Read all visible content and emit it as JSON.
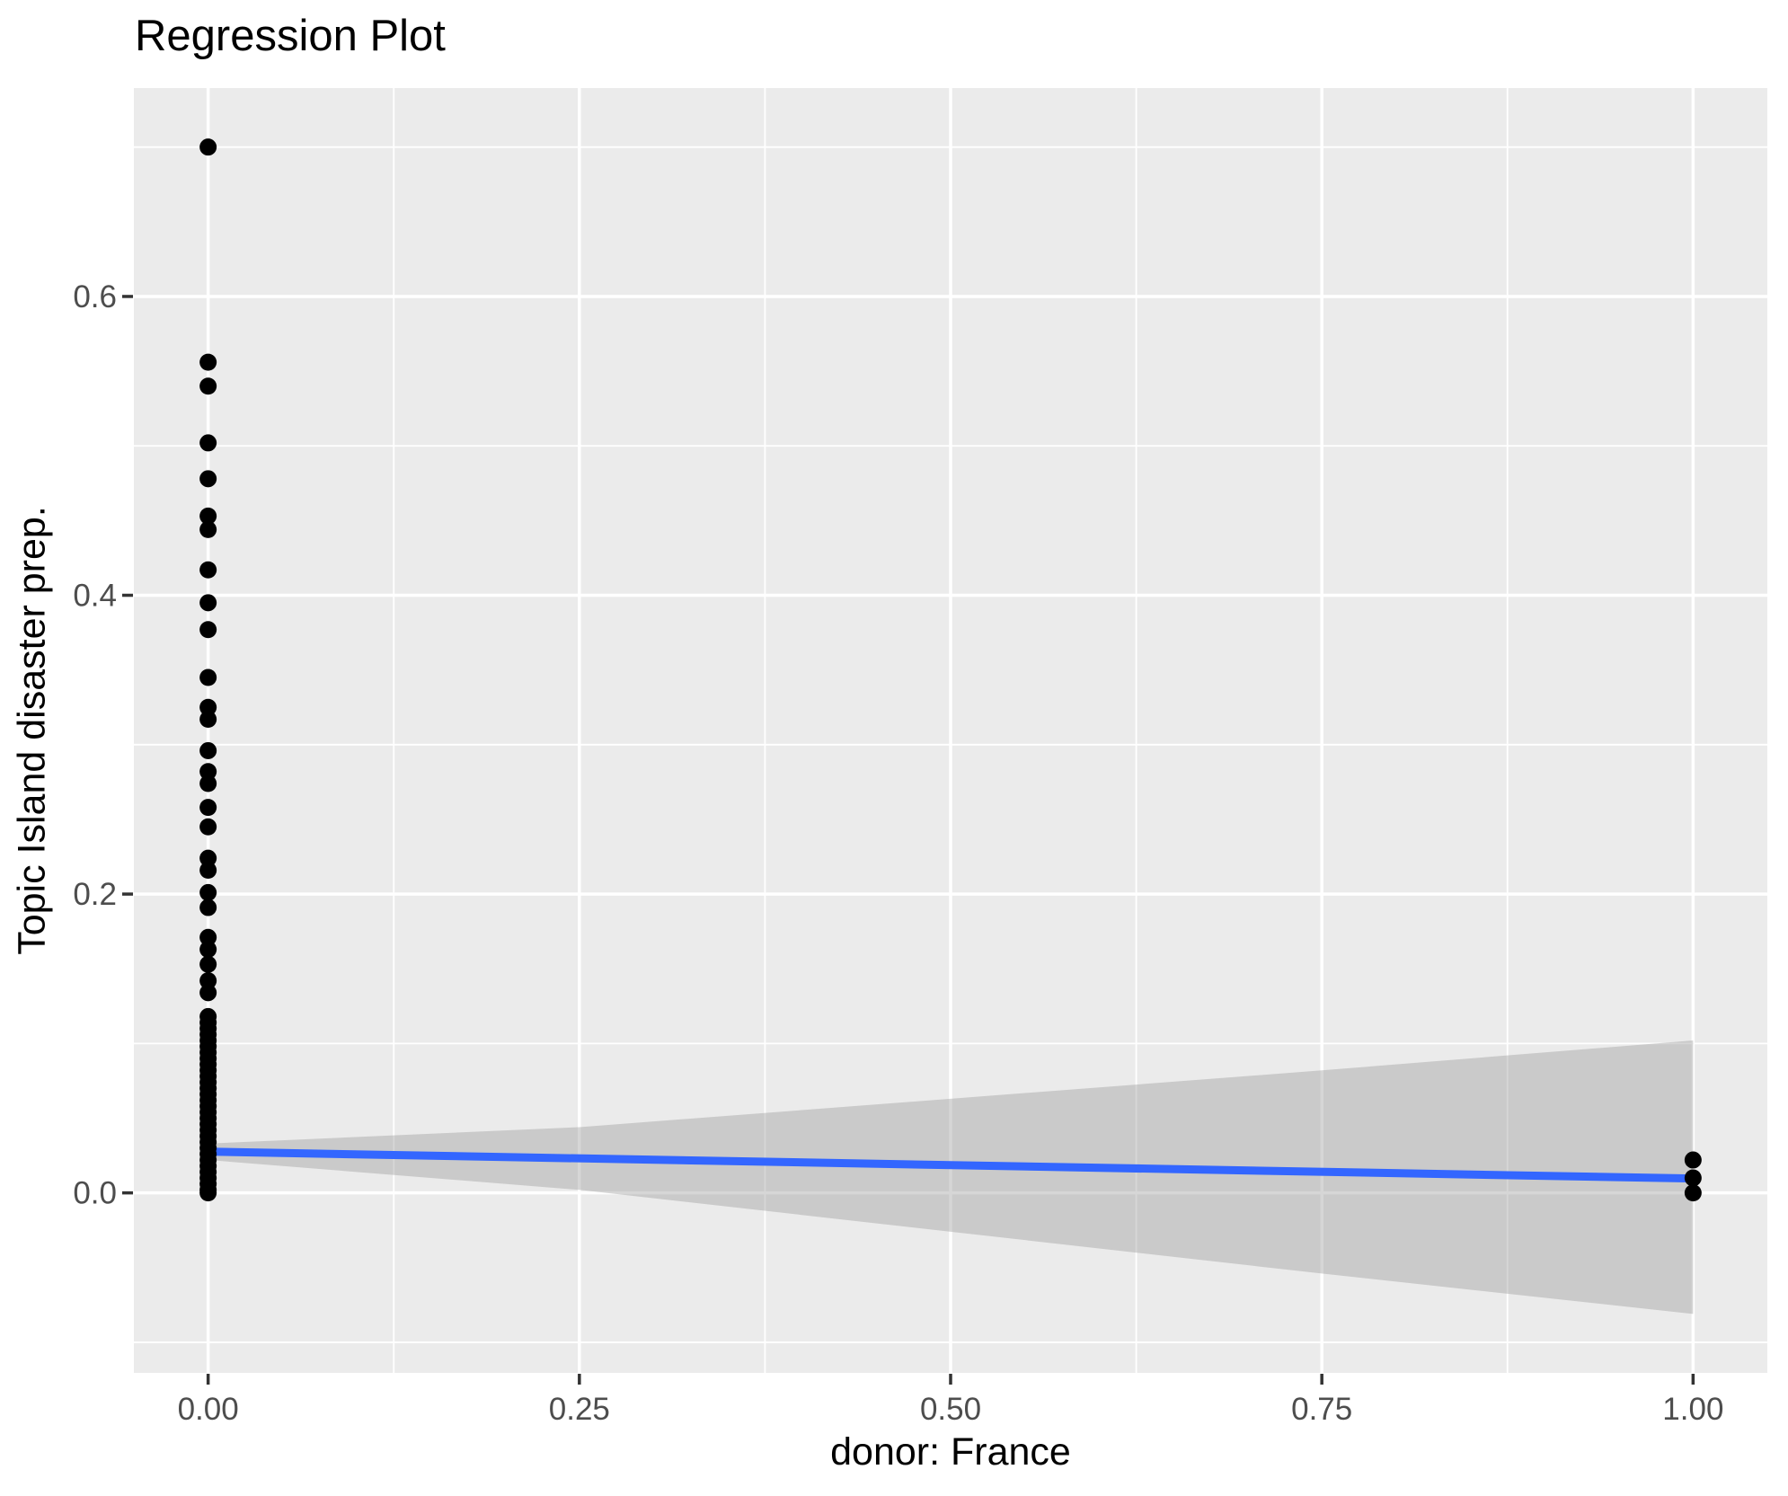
{
  "chart_data": {
    "type": "scatter",
    "title": "Regression Plot",
    "xlabel": "donor: France",
    "ylabel": "Topic Island disaster prep.",
    "legend": "none",
    "grid": "on",
    "panel_background": "#EBEBEB",
    "grid_color": "#FFFFFF",
    "point_color": "#000000",
    "line_color": "#3366FF",
    "band_fill": "rgba(153,153,153,0.4)",
    "tick_color": "#333333",
    "tick_label_color": "#4D4D4D",
    "xlim": [
      -0.05,
      1.05
    ],
    "ylim": [
      -0.1205,
      0.7395
    ],
    "x_ticks": [
      0,
      0.25,
      0.5,
      0.75,
      1
    ],
    "x_tick_labels": [
      "0.00",
      "0.25",
      "0.50",
      "0.75",
      "1.00"
    ],
    "x_minor_ticks": [
      0.125,
      0.375,
      0.625,
      0.875
    ],
    "y_ticks": [
      0,
      0.2,
      0.4,
      0.6
    ],
    "y_tick_labels": [
      "0.0",
      "0.2",
      "0.4",
      "0.6"
    ],
    "y_minor_ticks": [
      -0.1,
      0.1,
      0.3,
      0.5,
      0.7
    ],
    "scatter_points": [
      [
        0,
        0.7
      ],
      [
        0,
        0.556
      ],
      [
        0,
        0.54
      ],
      [
        0,
        0.502
      ],
      [
        0,
        0.478
      ],
      [
        0,
        0.453
      ],
      [
        0,
        0.444
      ],
      [
        0,
        0.417
      ],
      [
        0,
        0.395
      ],
      [
        0,
        0.377
      ],
      [
        0,
        0.345
      ],
      [
        0,
        0.325
      ],
      [
        0,
        0.317
      ],
      [
        0,
        0.296
      ],
      [
        0,
        0.282
      ],
      [
        0,
        0.274
      ],
      [
        0,
        0.258
      ],
      [
        0,
        0.245
      ],
      [
        0,
        0.224
      ],
      [
        0,
        0.216
      ],
      [
        0,
        0.201
      ],
      [
        0,
        0.191
      ],
      [
        0,
        0.171
      ],
      [
        0,
        0.163
      ],
      [
        0,
        0.153
      ],
      [
        0,
        0.142
      ],
      [
        0,
        0.134
      ],
      [
        0,
        0.118
      ],
      [
        0,
        0.114
      ],
      [
        0,
        0.11
      ],
      [
        0,
        0.106
      ],
      [
        0,
        0.102
      ],
      [
        0,
        0.098
      ],
      [
        0,
        0.094
      ],
      [
        0,
        0.09
      ],
      [
        0,
        0.086
      ],
      [
        0,
        0.082
      ],
      [
        0,
        0.078
      ],
      [
        0,
        0.074
      ],
      [
        0,
        0.07
      ],
      [
        0,
        0.066
      ],
      [
        0,
        0.062
      ],
      [
        0,
        0.058
      ],
      [
        0,
        0.054
      ],
      [
        0,
        0.05
      ],
      [
        0,
        0.046
      ],
      [
        0,
        0.042
      ],
      [
        0,
        0.038
      ],
      [
        0,
        0.034
      ],
      [
        0,
        0.03
      ],
      [
        0,
        0.026
      ],
      [
        0,
        0.022
      ],
      [
        0,
        0.018
      ],
      [
        0,
        0.014
      ],
      [
        0,
        0.01
      ],
      [
        0,
        0.006
      ],
      [
        0,
        0.002
      ],
      [
        0,
        0.0
      ],
      [
        1,
        0.022
      ],
      [
        1,
        0.01
      ],
      [
        1,
        0.0
      ]
    ],
    "regression_line": {
      "x": [
        0,
        1
      ],
      "y": [
        0.0276,
        0.0096
      ]
    },
    "confidence_band": {
      "x": [
        0,
        0.25,
        0.5,
        0.75,
        1
      ],
      "upper": [
        0.033,
        0.044,
        0.063,
        0.082,
        0.102
      ],
      "lower": [
        0.022,
        0.002,
        -0.026,
        -0.054,
        -0.081
      ]
    }
  }
}
